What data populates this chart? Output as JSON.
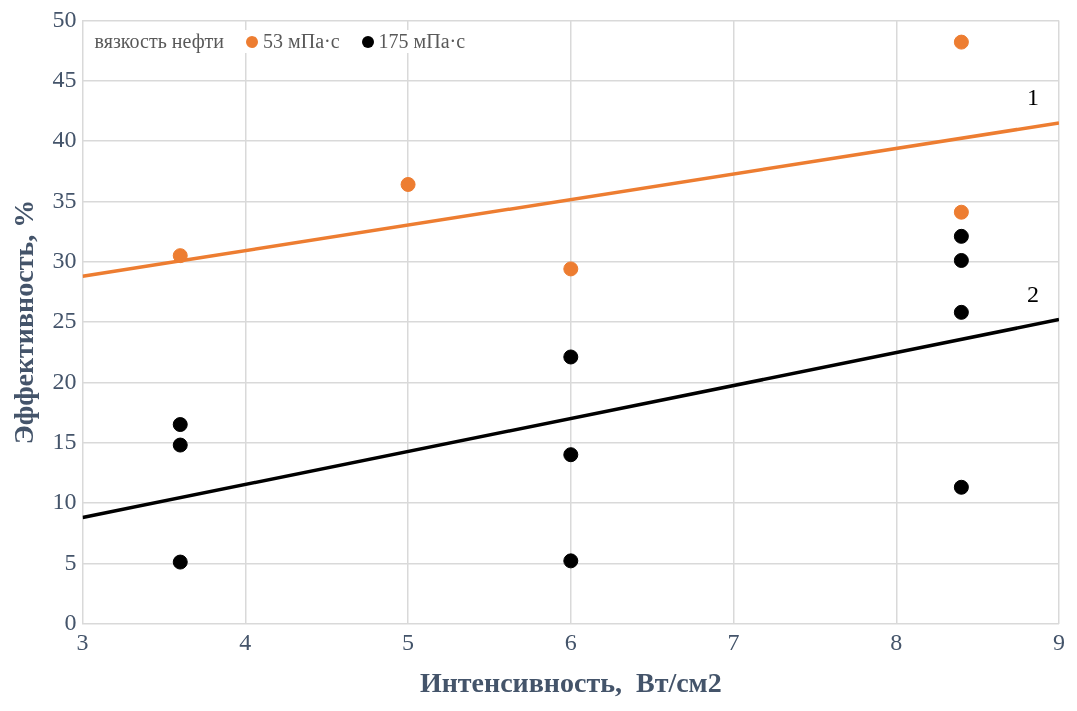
{
  "chart_data": {
    "type": "scatter",
    "xlabel": "Интенсивность,  Вт/см2",
    "ylabel": "Эффективность, %",
    "legend_title": "вязкость нефти",
    "legend": "top left",
    "grid": true,
    "xlim": [
      3,
      9
    ],
    "xticks": [
      3,
      4,
      5,
      6,
      7,
      8,
      9
    ],
    "ylim": [
      0,
      50
    ],
    "yticks": [
      0,
      5,
      10,
      15,
      20,
      25,
      30,
      35,
      40,
      45,
      50
    ],
    "series": [
      {
        "name": "53 мПа·с",
        "marker": "circle",
        "color": "#ed7d31",
        "x": [
          3.6,
          5,
          6,
          8.4,
          8.4
        ],
        "values": [
          30.5,
          36.4,
          29.4,
          48.2,
          34.1
        ]
      },
      {
        "name": "175 мПа·с",
        "marker": "circle",
        "color": "#000000",
        "x": [
          3.6,
          3.6,
          3.6,
          6,
          6,
          6,
          8.4,
          8.4,
          8.4,
          8.4
        ],
        "values": [
          16.5,
          14.8,
          5.1,
          22.1,
          14.0,
          5.2,
          32.1,
          30.1,
          25.8,
          11.3
        ]
      },
      {
        "type": "line",
        "marker": "none",
        "color": "#ed7d31",
        "x": [
          3,
          9
        ],
        "values": [
          28.8,
          41.5
        ]
      },
      {
        "type": "line",
        "marker": "none",
        "color": "#000000",
        "x": [
          3,
          9
        ],
        "values": [
          8.8,
          25.2
        ]
      }
    ],
    "annotations": [
      {
        "text": "1",
        "x": 9,
        "y": 41.5
      },
      {
        "text": "2",
        "x": 9,
        "y": 25.2
      }
    ]
  }
}
